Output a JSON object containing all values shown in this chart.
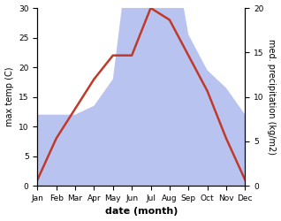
{
  "months": [
    "Jan",
    "Feb",
    "Mar",
    "Apr",
    "May",
    "Jun",
    "Jul",
    "Aug",
    "Sep",
    "Oct",
    "Nov",
    "Dec"
  ],
  "temperature": [
    1,
    8,
    13,
    18,
    22,
    22,
    30,
    28,
    22,
    16,
    8,
    1
  ],
  "precipitation": [
    8,
    8,
    8,
    9,
    12,
    29,
    25,
    29,
    17,
    13,
    11,
    8
  ],
  "temp_color": "#c0392b",
  "precip_fill_color": "#b8c4ef",
  "temp_ylim": [
    0,
    30
  ],
  "precip_scale": 1.5,
  "right_yticks": [
    0,
    5,
    10,
    15,
    20
  ],
  "left_yticks": [
    0,
    5,
    10,
    15,
    20,
    25,
    30
  ],
  "xlabel": "date (month)",
  "ylabel_left": "max temp (C)",
  "ylabel_right": "med. precipitation (kg/m2)",
  "bg_color": "#ffffff",
  "figure_width": 3.18,
  "figure_height": 2.5,
  "dpi": 100
}
